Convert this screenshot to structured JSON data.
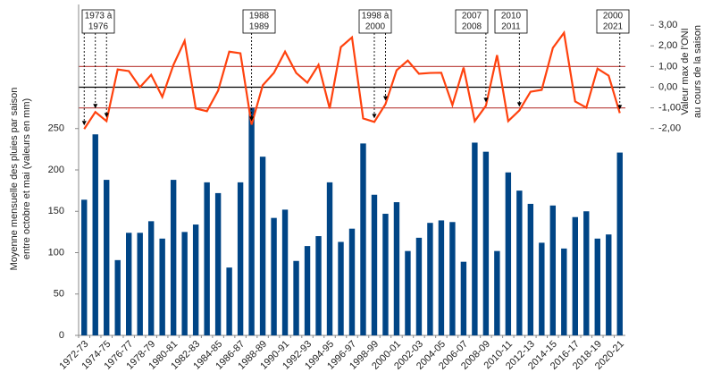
{
  "chart_data": {
    "type": "bar_line",
    "categories": [
      "1972-73",
      null,
      "1974-75",
      null,
      "1976-77",
      null,
      "1978-79",
      null,
      "1980-81",
      null,
      "1982-83",
      null,
      "1984-85",
      null,
      "1986-87",
      null,
      "1988-89",
      null,
      "1990-91",
      null,
      "1992-93",
      null,
      "1994-95",
      null,
      "1996-97",
      null,
      "1998-99",
      null,
      "2000-01",
      null,
      "2002-03",
      null,
      "2004-05",
      null,
      "2006-07",
      null,
      "2008-09",
      null,
      "2010-11",
      null,
      "2012-13",
      null,
      "2014-15",
      null,
      "2016-17",
      null,
      "2018-19",
      null,
      "2020-21"
    ],
    "y_label": [
      "Moyenne mensuelle des pluies par saison",
      "entre octobre et mai (valeurs en mm)"
    ],
    "y2_label": [
      "Valeur max de l'ONI",
      "au cours de la saison"
    ],
    "ylim": [
      0,
      400
    ],
    "yticks": [
      0,
      50,
      100,
      150,
      200,
      250
    ],
    "y2lim": [
      -12,
      4
    ],
    "y2ticks": [
      {
        "value": -2,
        "label": "-2,00"
      },
      {
        "value": -1,
        "label": "-1,00"
      },
      {
        "value": 0,
        "label": "0,00"
      },
      {
        "value": 1,
        "label": "1,00"
      },
      {
        "value": 2,
        "label": "2,00"
      },
      {
        "value": 3,
        "label": "3,00"
      }
    ],
    "reference_lines": [
      {
        "value": 1,
        "color": "#c0504d"
      },
      {
        "value": 0,
        "color": "#000000"
      },
      {
        "value": -1,
        "color": "#c0504d"
      }
    ],
    "series": [
      {
        "type": "bar",
        "color": "#004586",
        "values": [
          164,
          243,
          188,
          91,
          124,
          124,
          138,
          117,
          188,
          125,
          134,
          185,
          172,
          82,
          185,
          275,
          216,
          142,
          152,
          90,
          108,
          120,
          185,
          113,
          129,
          232,
          170,
          147,
          161,
          102,
          118,
          136,
          139,
          137,
          89,
          233,
          222,
          102,
          197,
          175,
          159,
          112,
          157,
          105,
          143,
          150,
          117,
          122,
          221
        ]
      },
      {
        "type": "line",
        "axis": "y2",
        "color": "#ff420e",
        "values": [
          -2.02,
          -1.2,
          -1.64,
          0.86,
          0.78,
          0,
          0.6,
          -0.47,
          1.08,
          2.24,
          -1.03,
          -1.16,
          -0.17,
          1.72,
          1.64,
          -1.81,
          0.09,
          0.69,
          1.72,
          0.69,
          0.22,
          1.08,
          -1.03,
          1.94,
          2.41,
          -1.51,
          -1.68,
          -0.82,
          0.82,
          1.29,
          0.65,
          0.69,
          0.7,
          -0.86,
          0.95,
          -1.64,
          -0.9,
          1.55,
          -1.64,
          -1.12,
          -0.22,
          -0.13,
          1.9,
          2.63,
          -0.69,
          -0.99,
          0.9,
          0.56,
          -1.25
        ]
      }
    ],
    "annotations": [
      [
        "1973 à",
        "1976"
      ],
      [
        "1988",
        "1989"
      ],
      [
        "1998 à",
        "2000"
      ],
      [
        "2007",
        "2008"
      ],
      [
        "2010",
        "2011"
      ],
      [
        "2000",
        "2021"
      ]
    ]
  }
}
